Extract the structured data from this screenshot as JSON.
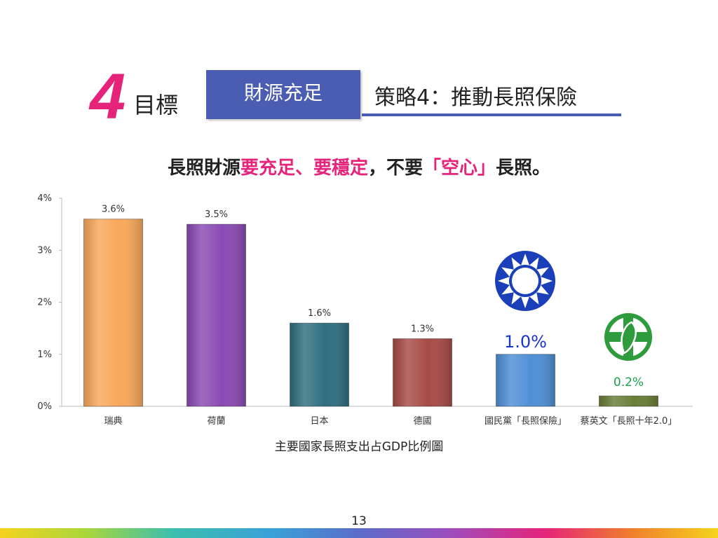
{
  "header": {
    "goal_number": "4",
    "goal_label": "目標",
    "badge": "財源充足",
    "strategy": "策略4：推動長照保險"
  },
  "headline": {
    "part1": "長照財源",
    "part2": "要充足、要穩定",
    "part3": "，不要",
    "part4": "「空心」",
    "part5": "長照。"
  },
  "chart_data": {
    "type": "bar",
    "categories": [
      "瑞典",
      "荷蘭",
      "日本",
      "德國",
      "國民黨「長照保險」",
      "蔡英文「長照十年2.0」"
    ],
    "values": [
      3.6,
      3.5,
      1.6,
      1.3,
      1.0,
      0.2
    ],
    "value_labels": [
      "3.6%",
      "3.5%",
      "1.6%",
      "1.3%",
      "1.0%",
      "0.2%"
    ],
    "bar_colors": [
      "#f9a85a",
      "#8a4ab3",
      "#2f6f7f",
      "#a84b47",
      "#4f8fd6",
      "#6a7d36"
    ],
    "label_colors": [
      "#333333",
      "#333333",
      "#333333",
      "#333333",
      "#1a35c9",
      "#16a34a"
    ],
    "ylim": [
      0,
      4
    ],
    "yticks": [
      "0%",
      "1%",
      "2%",
      "3%",
      "4%"
    ],
    "xlabel": "主要國家長照支出占GDP比例圖",
    "ylabel": "",
    "grid": false
  },
  "icons": {
    "kmt_emblem": "kmt-party-emblem-icon",
    "dpp_emblem": "dpp-party-emblem-icon"
  },
  "page_number": "13"
}
